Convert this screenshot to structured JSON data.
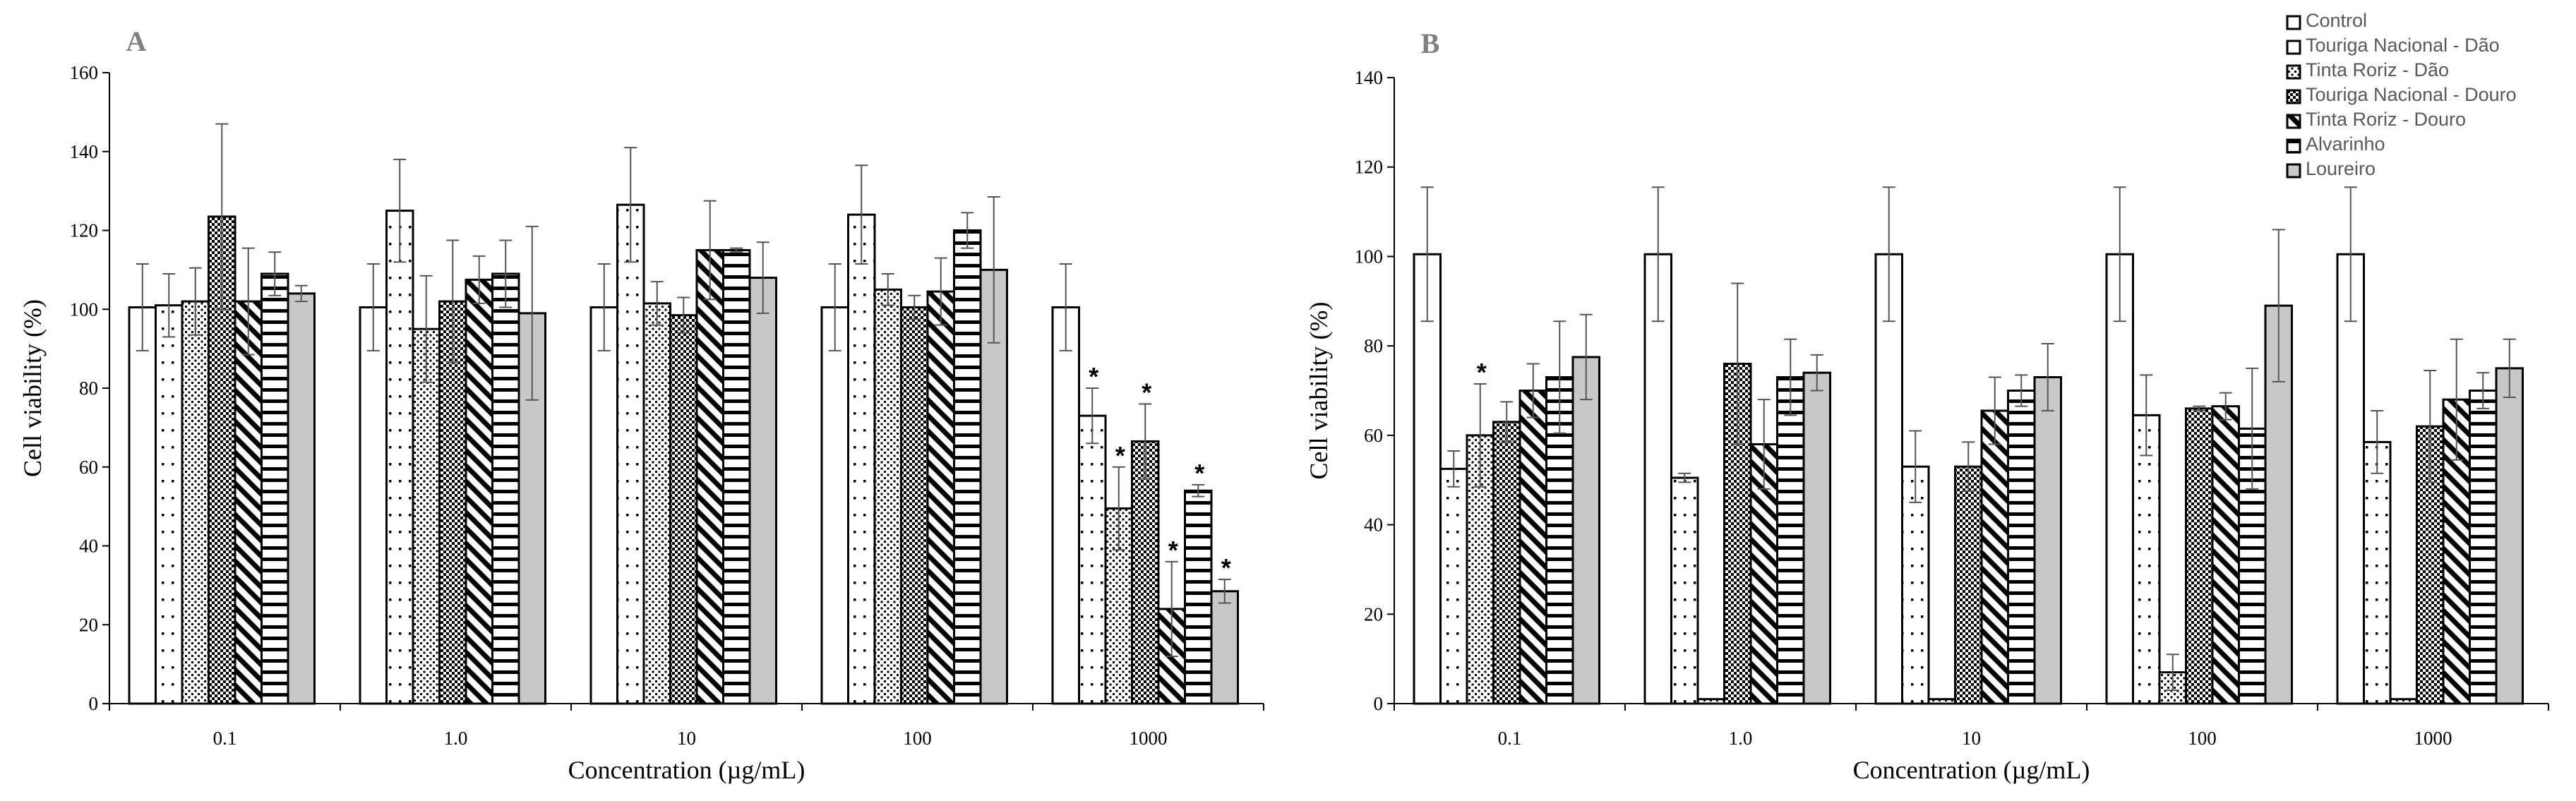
{
  "legend": [
    {
      "label": "Control",
      "pattern": "plain"
    },
    {
      "label": "Touriga Nacional - Dão",
      "pattern": "sparse-dots"
    },
    {
      "label": "Tinta Roriz - Dão",
      "pattern": "dense-dots"
    },
    {
      "label": "Touriga Nacional - Douro",
      "pattern": "checker"
    },
    {
      "label": "Tinta Roriz - Douro",
      "pattern": "diagonal"
    },
    {
      "label": "Alvarinho",
      "pattern": "horizontal"
    },
    {
      "label": "Loureiro",
      "pattern": "gray"
    }
  ],
  "colors": {
    "gray_fill": "#c8c8c8",
    "axis": "#000000",
    "panel_letter": "#808080",
    "legend_text": "#595959"
  },
  "chart_data": [
    {
      "panel": "A",
      "type": "bar",
      "xlabel": "Concentration (µg/mL)",
      "ylabel": "Cell viability (%)",
      "ylim": [
        0,
        160
      ],
      "yticks": [
        0,
        20,
        40,
        60,
        80,
        100,
        120,
        140,
        160
      ],
      "categories": [
        "0.1",
        "1.0",
        "10",
        "100",
        "1000"
      ],
      "series": [
        {
          "name": "Control",
          "values": [
            100.5,
            100.5,
            100.5,
            100.5,
            100.5
          ],
          "errors": [
            11,
            11,
            11,
            11,
            11
          ],
          "significant": [
            false,
            false,
            false,
            false,
            false
          ]
        },
        {
          "name": "Touriga Nacional - Dão",
          "values": [
            101,
            125,
            126.5,
            124,
            73
          ],
          "errors": [
            8,
            13,
            14.5,
            12.5,
            7
          ],
          "significant": [
            false,
            false,
            false,
            false,
            true
          ]
        },
        {
          "name": "Tinta Roriz - Dão",
          "values": [
            102,
            95,
            101.5,
            105,
            49.5
          ],
          "errors": [
            8.5,
            13.5,
            5.5,
            4,
            10.5
          ],
          "significant": [
            false,
            false,
            false,
            false,
            true
          ]
        },
        {
          "name": "Touriga Nacional - Douro",
          "values": [
            123.5,
            102,
            98.5,
            100.5,
            66.5
          ],
          "errors": [
            23.5,
            15.5,
            4.5,
            3,
            9.5
          ],
          "significant": [
            false,
            false,
            false,
            false,
            true
          ]
        },
        {
          "name": "Tinta Roriz - Douro",
          "values": [
            102,
            107.5,
            115,
            104.5,
            24
          ],
          "errors": [
            13.5,
            6,
            12.5,
            8.5,
            12
          ],
          "significant": [
            false,
            false,
            false,
            false,
            true
          ]
        },
        {
          "name": "Alvarinho",
          "values": [
            109,
            109,
            115,
            120,
            54
          ],
          "errors": [
            5.5,
            8.5,
            0.5,
            4.5,
            1.5
          ],
          "significant": [
            false,
            false,
            false,
            false,
            true
          ]
        },
        {
          "name": "Loureiro",
          "values": [
            104,
            99,
            108,
            110,
            28.5
          ],
          "errors": [
            2,
            22,
            9,
            18.5,
            3
          ],
          "significant": [
            false,
            false,
            false,
            false,
            true
          ]
        }
      ]
    },
    {
      "panel": "B",
      "type": "bar",
      "xlabel": "Concentration (µg/mL)",
      "ylabel": "Cell viability (%)",
      "ylim": [
        0,
        140
      ],
      "yticks": [
        0,
        20,
        40,
        60,
        80,
        100,
        120,
        140
      ],
      "categories": [
        "0.1",
        "1.0",
        "10",
        "100",
        "1000"
      ],
      "series": [
        {
          "name": "Control",
          "values": [
            100.5,
            100.5,
            100.5,
            100.5,
            100.5
          ],
          "errors": [
            15,
            15,
            15,
            15,
            15
          ],
          "significant": [
            false,
            false,
            false,
            false,
            false
          ]
        },
        {
          "name": "Touriga Nacional - Dão",
          "values": [
            52.5,
            50.5,
            53,
            64.5,
            58.5
          ],
          "errors": [
            4,
            1,
            8,
            9,
            7
          ],
          "significant": [
            false,
            false,
            false,
            false,
            false
          ]
        },
        {
          "name": "Tinta Roriz - Dão",
          "values": [
            60,
            1,
            1,
            7,
            1
          ],
          "errors": [
            11.5,
            0,
            0,
            4,
            0
          ],
          "significant": [
            true,
            false,
            false,
            false,
            false
          ]
        },
        {
          "name": "Touriga Nacional - Douro",
          "values": [
            63,
            76,
            53,
            66,
            62
          ],
          "errors": [
            4.5,
            18,
            5.5,
            0.5,
            12.5
          ],
          "significant": [
            false,
            false,
            false,
            false,
            false
          ]
        },
        {
          "name": "Tinta Roriz - Douro",
          "values": [
            70,
            58,
            65.5,
            66.5,
            68
          ],
          "errors": [
            6,
            10,
            7.5,
            3,
            13.5
          ],
          "significant": [
            false,
            false,
            false,
            false,
            false
          ]
        },
        {
          "name": "Alvarinho",
          "values": [
            73,
            73,
            70,
            61.5,
            70
          ],
          "errors": [
            12.5,
            8.5,
            3.5,
            13.5,
            4
          ],
          "significant": [
            false,
            false,
            false,
            false,
            false
          ]
        },
        {
          "name": "Loureiro",
          "values": [
            77.5,
            74,
            73,
            89,
            75
          ],
          "errors": [
            9.5,
            4,
            7.5,
            17,
            6.5
          ],
          "significant": [
            false,
            false,
            false,
            false,
            false
          ]
        }
      ]
    }
  ]
}
